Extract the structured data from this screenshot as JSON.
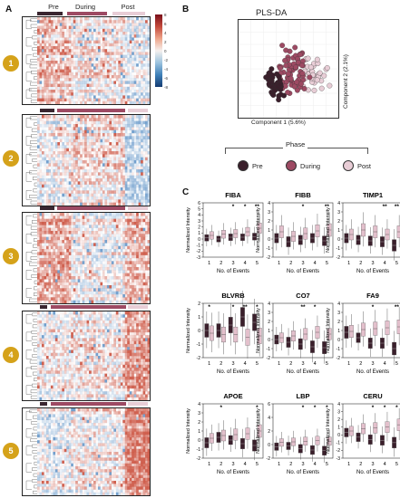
{
  "panels": {
    "a": "A",
    "b": "B",
    "c": "C"
  },
  "phases": [
    {
      "label": "Pre",
      "color": "#3a2630"
    },
    {
      "label": "During",
      "color": "#9d4a63"
    },
    {
      "label": "Post",
      "color": "#e8cdd6"
    }
  ],
  "heatmap": {
    "colorbar_ticks": [
      "8",
      "6",
      "4",
      "2",
      "0",
      "-2",
      "-4",
      "-6",
      "-8"
    ],
    "clusters": [
      {
        "label": "1"
      },
      {
        "label": "2"
      },
      {
        "label": "3"
      },
      {
        "label": "4"
      },
      {
        "label": "5"
      }
    ]
  },
  "plsda": {
    "title": "PLS-DA",
    "xlabel": "Component 1 (5.6%)",
    "ylabel": "Component 2 (2.1%)"
  },
  "legend": {
    "title": "Phase",
    "items": [
      "Pre",
      "During",
      "Post"
    ]
  },
  "boxplots": {
    "xlabel": "No. of Events",
    "ylabel": "Normalized Intensity",
    "x_ticks": [
      "1",
      "2",
      "3",
      "4",
      "5"
    ],
    "colors": {
      "dark": "#3a1f2b",
      "light": "#e3c0cc"
    }
  },
  "chart_data": [
    {
      "type": "box",
      "title": "FIBA",
      "ylim": [
        -3,
        6
      ],
      "yticks": [
        "-3",
        "-2",
        "-1",
        "0",
        "1",
        "2",
        "3",
        "4",
        "5",
        "6"
      ],
      "categories": [
        "1",
        "2",
        "3",
        "4",
        "5"
      ],
      "series": [
        {
          "name": "Pre",
          "medians": [
            0.2,
            0.0,
            0.3,
            0.3,
            0.4
          ]
        },
        {
          "name": "Post",
          "medians": [
            0.6,
            0.8,
            0.9,
            1.2,
            1.8
          ]
        }
      ],
      "significance": [
        "",
        "",
        "*",
        "*",
        "**"
      ]
    },
    {
      "type": "box",
      "title": "FIBB",
      "ylim": [
        -2,
        4
      ],
      "yticks": [
        "-2",
        "-1",
        "0",
        "1",
        "2",
        "3",
        "4"
      ],
      "categories": [
        "1",
        "2",
        "3",
        "4",
        "5"
      ],
      "series": [
        {
          "name": "Pre",
          "medians": [
            0.1,
            -0.3,
            -0.1,
            0.1,
            -0.2
          ]
        },
        {
          "name": "Post",
          "medians": [
            0.8,
            0.3,
            0.6,
            0.9,
            1.0
          ]
        }
      ],
      "significance": [
        "",
        "",
        "*",
        "",
        "**"
      ]
    },
    {
      "type": "box",
      "title": "TIMP1",
      "ylim": [
        -2,
        4
      ],
      "yticks": [
        "-2",
        "-1",
        "0",
        "1",
        "2",
        "3",
        "4"
      ],
      "categories": [
        "1",
        "2",
        "3",
        "4",
        "5"
      ],
      "series": [
        {
          "name": "Pre",
          "medians": [
            0.1,
            -0.1,
            -0.2,
            -0.3,
            -0.7
          ]
        },
        {
          "name": "Post",
          "medians": [
            0.5,
            1.0,
            0.8,
            0.5,
            0.8
          ]
        }
      ],
      "significance": [
        "",
        "",
        "",
        "**",
        "**"
      ]
    },
    {
      "type": "box",
      "title": "BLVRB",
      "ylim": [
        -2,
        2
      ],
      "yticks": [
        "-2",
        "-1",
        "0",
        "1",
        "2"
      ],
      "categories": [
        "1",
        "2",
        "3",
        "4",
        "5"
      ],
      "series": [
        {
          "name": "Pre",
          "medians": [
            0.0,
            0.0,
            0.4,
            1.0,
            0.6
          ]
        },
        {
          "name": "Post",
          "medians": [
            -0.2,
            -0.3,
            -0.3,
            -0.5,
            -0.4
          ]
        }
      ],
      "significance": [
        "*",
        "",
        "*",
        "**",
        "*"
      ]
    },
    {
      "type": "box",
      "title": "CO7",
      "ylim": [
        -2,
        4
      ],
      "yticks": [
        "-2",
        "-1",
        "0",
        "1",
        "2",
        "3",
        "4"
      ],
      "categories": [
        "1",
        "2",
        "3",
        "4",
        "5"
      ],
      "series": [
        {
          "name": "Pre",
          "medians": [
            0.0,
            -0.3,
            -0.5,
            -0.8,
            -0.9
          ]
        },
        {
          "name": "Post",
          "medians": [
            0.2,
            0.4,
            0.6,
            0.8,
            0.6
          ]
        }
      ],
      "significance": [
        "",
        "",
        "**",
        "*",
        ""
      ]
    },
    {
      "type": "box",
      "title": "FA9",
      "ylim": [
        -2,
        4
      ],
      "yticks": [
        "-2",
        "-1",
        "0",
        "1",
        "2",
        "3",
        "4"
      ],
      "categories": [
        "1",
        "2",
        "3",
        "4",
        "5"
      ],
      "series": [
        {
          "name": "Pre",
          "medians": [
            0.8,
            0.2,
            -0.4,
            -0.4,
            -1.0
          ]
        },
        {
          "name": "Post",
          "medians": [
            0.9,
            1.1,
            1.2,
            1.3,
            1.4
          ]
        }
      ],
      "significance": [
        "",
        "",
        "*",
        "",
        "**"
      ]
    },
    {
      "type": "box",
      "title": "APOE",
      "ylim": [
        -2,
        4
      ],
      "yticks": [
        "-2",
        "-1",
        "0",
        "1",
        "2",
        "3",
        "4"
      ],
      "categories": [
        "1",
        "2",
        "3",
        "4",
        "5"
      ],
      "series": [
        {
          "name": "Pre",
          "medians": [
            -0.3,
            0.3,
            0.0,
            -0.4,
            -0.6
          ]
        },
        {
          "name": "Post",
          "medians": [
            0.2,
            0.5,
            0.6,
            0.7,
            1.0
          ]
        }
      ],
      "significance": [
        "",
        "*",
        "",
        "",
        "*"
      ]
    },
    {
      "type": "box",
      "title": "LBP",
      "ylim": [
        -2,
        6
      ],
      "yticks": [
        "-2",
        "0",
        "2",
        "4",
        "6"
      ],
      "categories": [
        "1",
        "2",
        "3",
        "4",
        "5"
      ],
      "series": [
        {
          "name": "Pre",
          "medians": [
            -0.3,
            -0.2,
            -0.6,
            -0.8,
            -0.9
          ]
        },
        {
          "name": "Post",
          "medians": [
            0.3,
            0.4,
            0.5,
            0.6,
            0.5
          ]
        }
      ],
      "significance": [
        "",
        "",
        "*",
        "*",
        "*"
      ]
    },
    {
      "type": "box",
      "title": "CERU",
      "ylim": [
        -3,
        4
      ],
      "yticks": [
        "-3",
        "-2",
        "-1",
        "0",
        "1",
        "2",
        "3",
        "4"
      ],
      "categories": [
        "1",
        "2",
        "3",
        "4",
        "5"
      ],
      "series": [
        {
          "name": "Pre",
          "medians": [
            0.3,
            -0.3,
            -0.6,
            -0.7,
            -1.0
          ]
        },
        {
          "name": "Post",
          "medians": [
            0.5,
            0.8,
            0.9,
            1.0,
            1.3
          ]
        }
      ],
      "significance": [
        "",
        "",
        "*",
        "*",
        "*"
      ]
    }
  ]
}
